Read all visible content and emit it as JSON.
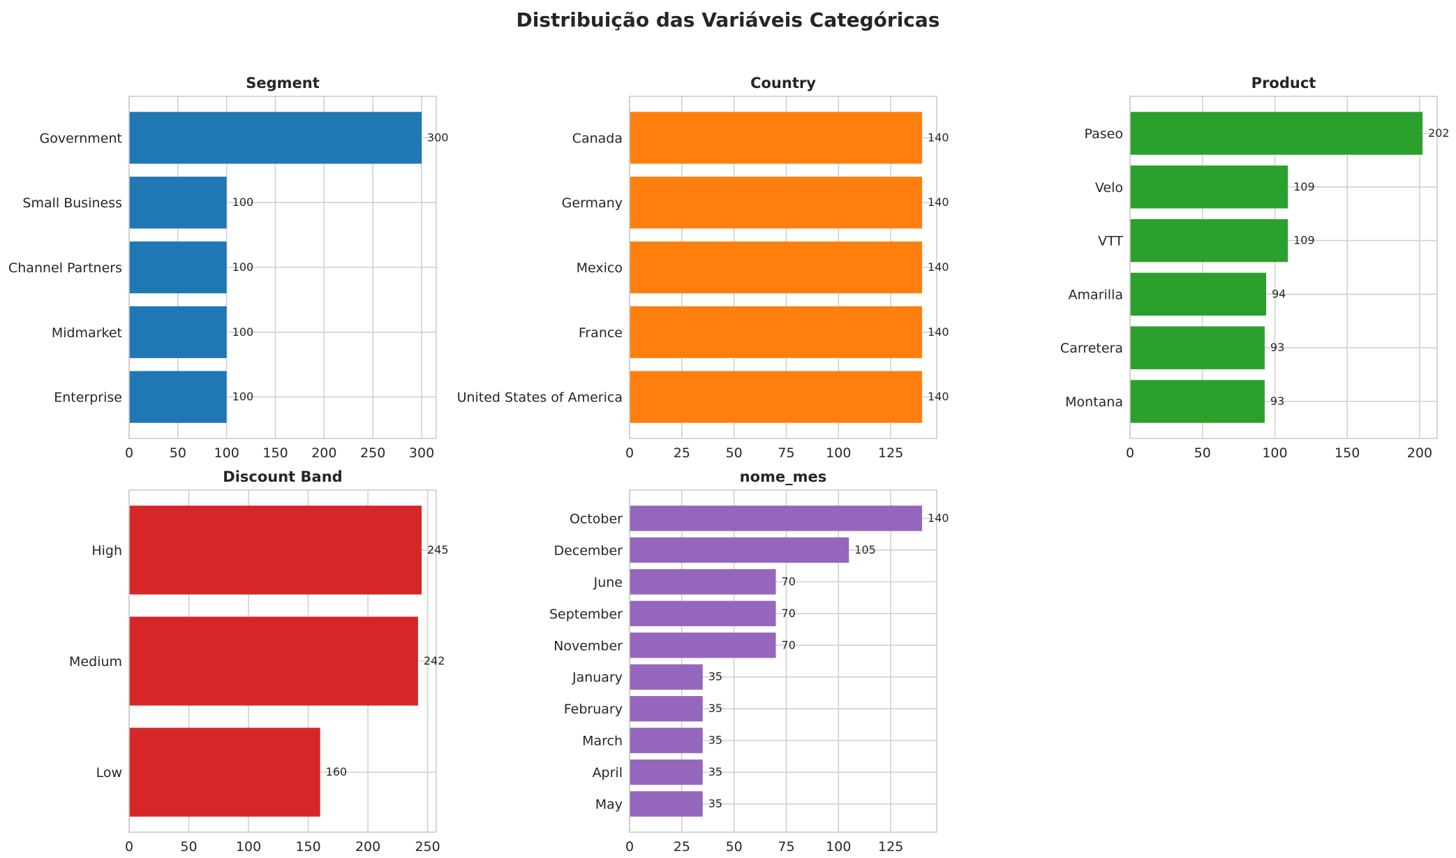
{
  "figure": {
    "title": "Distribuição das Variáveis Categóricas"
  },
  "chart_data": [
    {
      "type": "bar",
      "orientation": "horizontal",
      "title": "Segment",
      "color": "#1f77b4",
      "categories": [
        "Government",
        "Small Business",
        "Channel Partners",
        "Midmarket",
        "Enterprise"
      ],
      "values": [
        300,
        100,
        100,
        100,
        100
      ],
      "xlim": [
        0,
        315
      ],
      "xticks": [
        0,
        50,
        100,
        150,
        200,
        250,
        300
      ],
      "grid": true
    },
    {
      "type": "bar",
      "orientation": "horizontal",
      "title": "Country",
      "color": "#ff7f0e",
      "categories": [
        "Canada",
        "Germany",
        "Mexico",
        "France",
        "United States of America"
      ],
      "values": [
        140,
        140,
        140,
        140,
        140
      ],
      "xlim": [
        0,
        147
      ],
      "xticks": [
        0,
        25,
        50,
        75,
        100,
        125
      ],
      "grid": true
    },
    {
      "type": "bar",
      "orientation": "horizontal",
      "title": "Product",
      "color": "#2ca02c",
      "categories": [
        "Paseo",
        "Velo",
        "VTT",
        "Amarilla",
        "Carretera",
        "Montana"
      ],
      "values": [
        202,
        109,
        109,
        94,
        93,
        93
      ],
      "xlim": [
        0,
        212.1
      ],
      "xticks": [
        0,
        50,
        100,
        150,
        200
      ],
      "grid": true
    },
    {
      "type": "bar",
      "orientation": "horizontal",
      "title": "Discount Band",
      "color": "#d62728",
      "categories": [
        "High",
        "Medium",
        "Low"
      ],
      "values": [
        245,
        242,
        160
      ],
      "xlim": [
        0,
        257.25
      ],
      "xticks": [
        0,
        50,
        100,
        150,
        200,
        250
      ],
      "grid": true
    },
    {
      "type": "bar",
      "orientation": "horizontal",
      "title": "nome_mes",
      "color": "#9467bd",
      "categories": [
        "October",
        "December",
        "June",
        "September",
        "November",
        "January",
        "February",
        "March",
        "April",
        "May"
      ],
      "values": [
        140,
        105,
        70,
        70,
        70,
        35,
        35,
        35,
        35,
        35
      ],
      "xlim": [
        0,
        147
      ],
      "xticks": [
        0,
        25,
        50,
        75,
        100,
        125
      ],
      "grid": true
    }
  ]
}
